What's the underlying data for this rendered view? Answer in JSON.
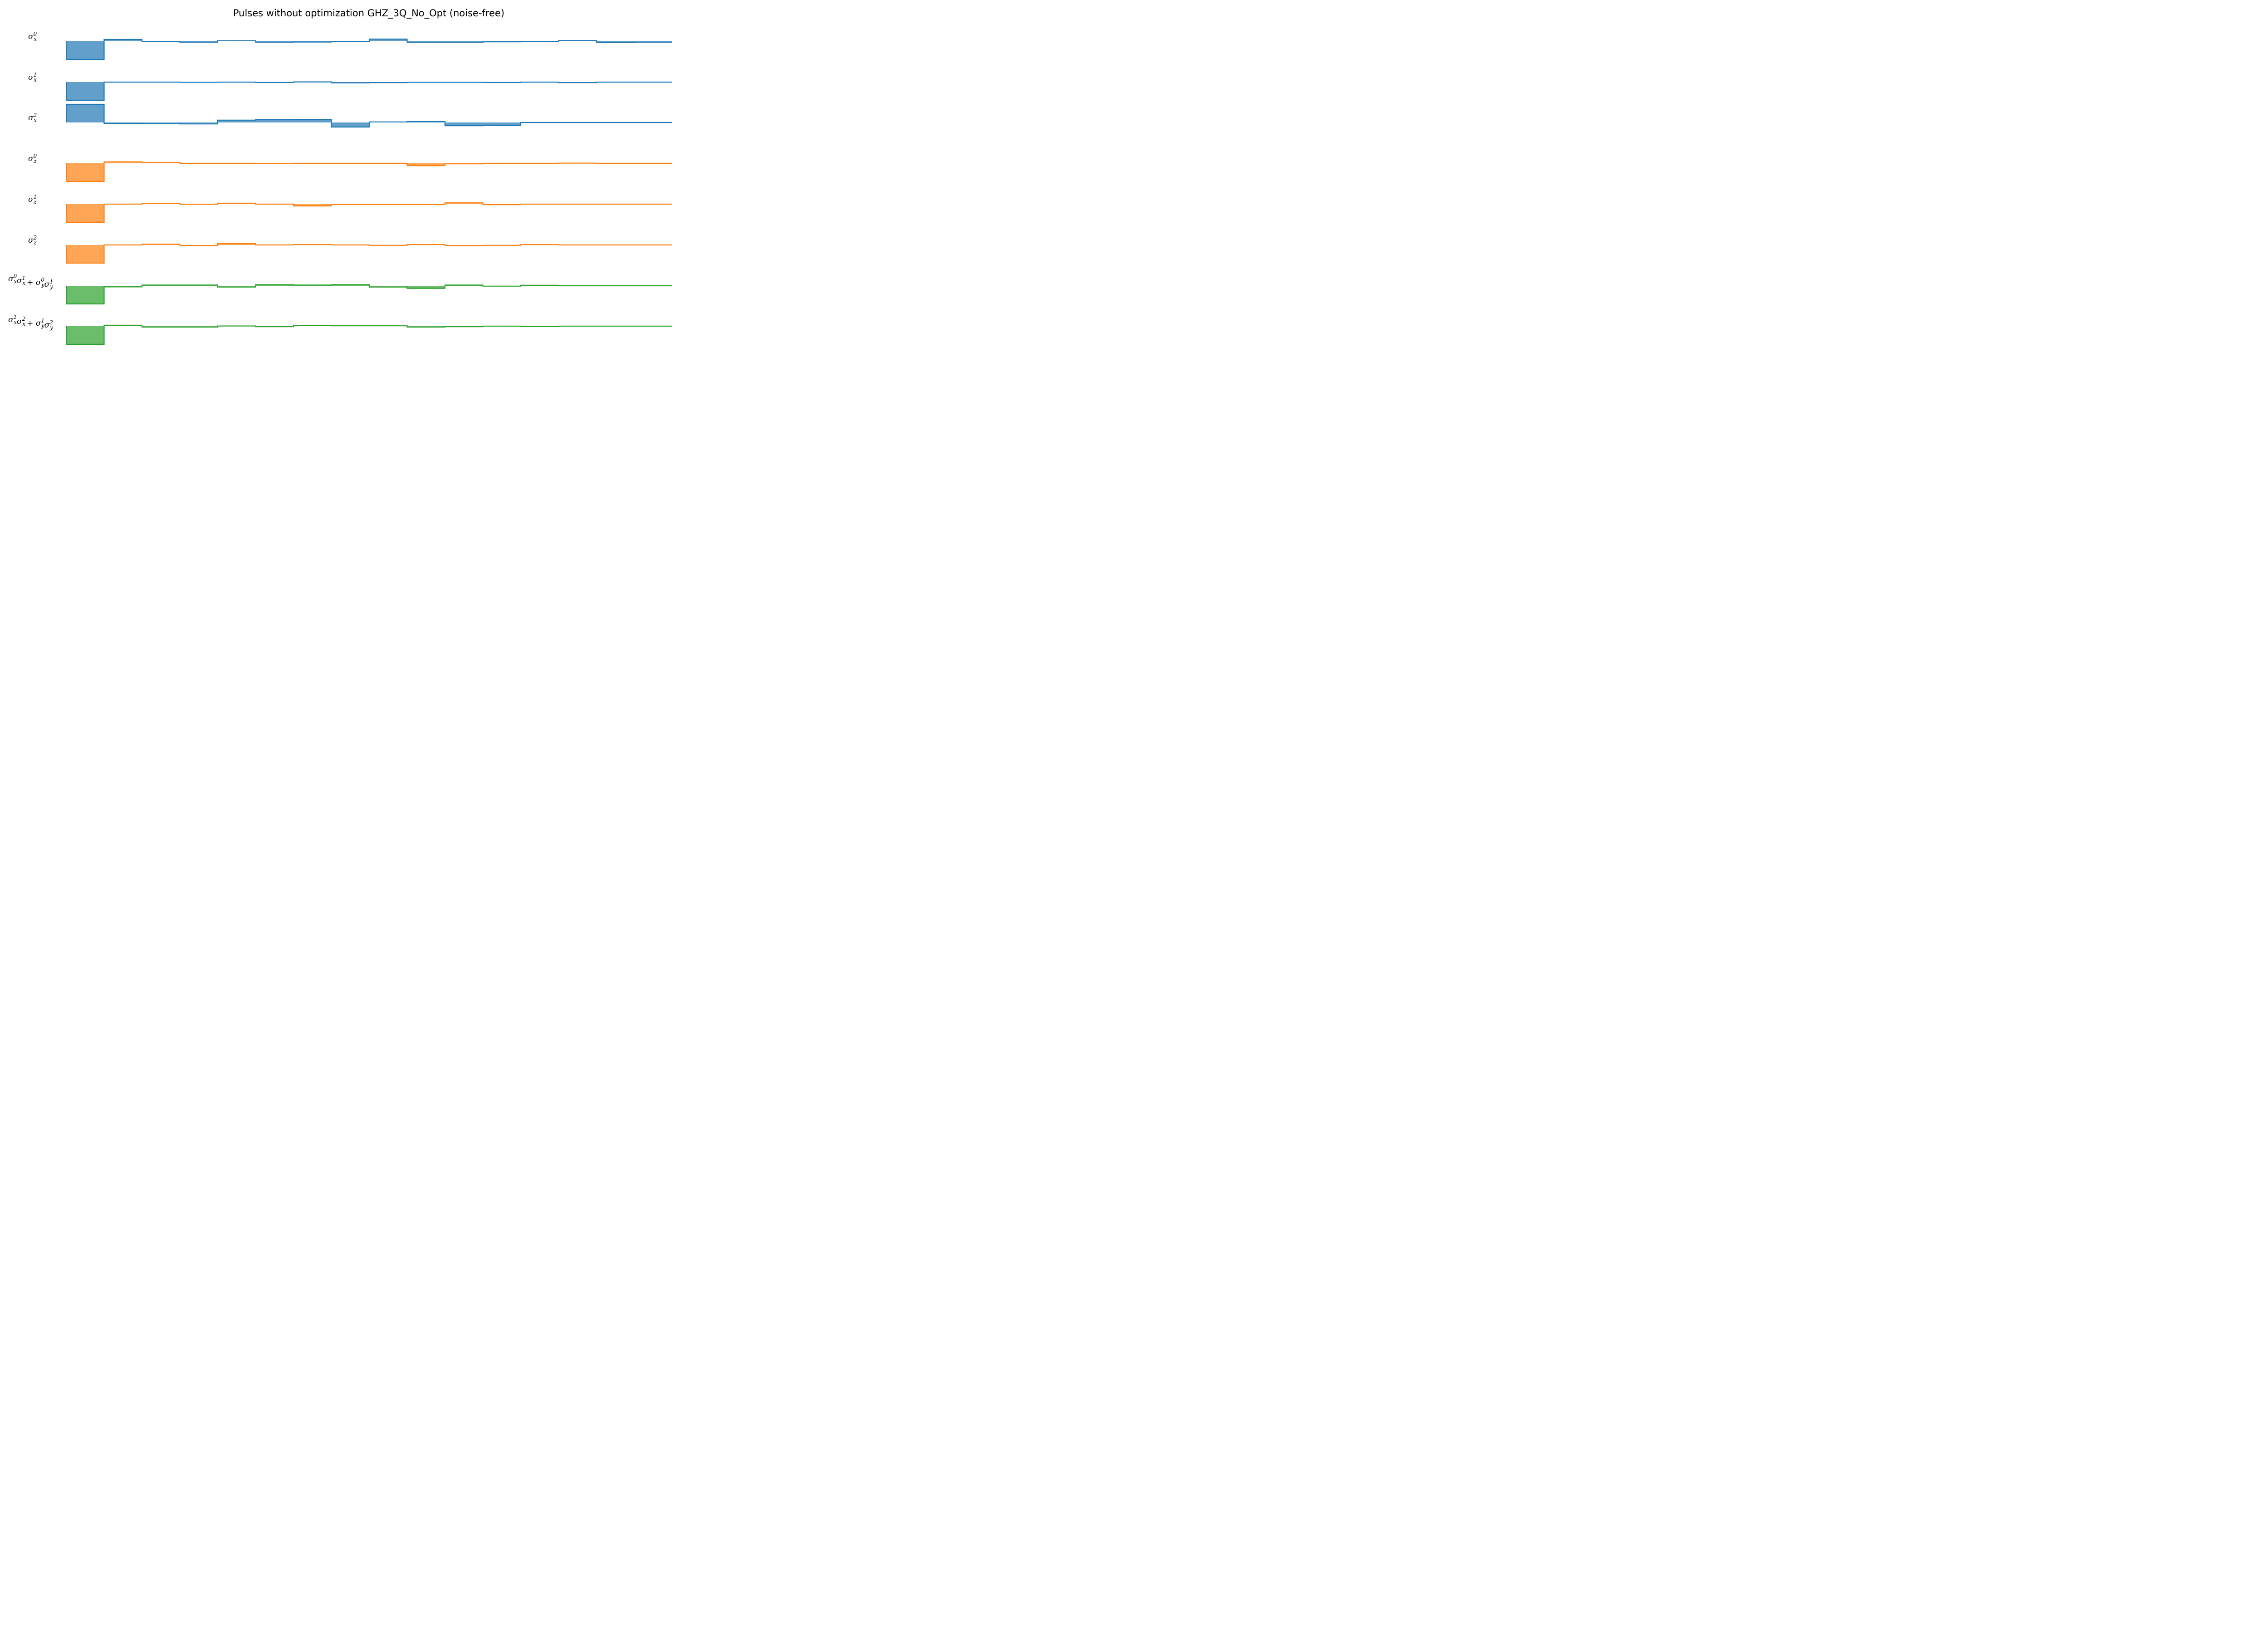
{
  "chart_data": {
    "type": "area",
    "title": "Pulses without optimization GHZ_3Q_No_Opt (noise-free)",
    "xlabel": "",
    "ylabel": "",
    "grid": false,
    "axes_visible": false,
    "x_segments": 16,
    "segment_edges": [
      0,
      4,
      5,
      6,
      7,
      8,
      9,
      10,
      11,
      12,
      13,
      14,
      15,
      16
    ],
    "series": [
      {
        "name": "σx0",
        "label_base": "σ",
        "label_sub": "x",
        "label_sup": "0",
        "color": "#1f77b4",
        "fill": "#62a0cb",
        "values": [
          -1.0,
          0.1,
          -0.02,
          -0.05,
          0.03,
          -0.05,
          -0.04,
          -0.02,
          0.12,
          -0.06,
          -0.06,
          -0.03,
          -0.01,
          0.04,
          -0.07,
          -0.05
        ]
      },
      {
        "name": "σx1",
        "label_base": "σ",
        "label_sub": "x",
        "label_sup": "1",
        "color": "#1f77b4",
        "fill": "#62a0cb",
        "values": [
          -1.0,
          0.0,
          0.0,
          -0.01,
          0.0,
          -0.02,
          0.01,
          -0.04,
          -0.03,
          -0.01,
          -0.01,
          -0.02,
          0.0,
          -0.03,
          0.0,
          0.0
        ]
      },
      {
        "name": "σx2",
        "label_base": "σ",
        "label_sub": "x",
        "label_sup": "2",
        "color": "#1f77b4",
        "fill": "#62a0cb",
        "values": [
          1.0,
          -0.05,
          -0.07,
          -0.08,
          0.13,
          0.16,
          0.17,
          -0.25,
          0.03,
          0.05,
          -0.18,
          -0.17,
          0.0,
          0.0,
          0.0,
          0.0
        ]
      },
      {
        "name": "σz0",
        "label_base": "σ",
        "label_sub": "z",
        "label_sup": "0",
        "color": "#ff7f0e",
        "fill": "#ffa556",
        "values": [
          -1.0,
          0.08,
          0.04,
          0.0,
          0.0,
          -0.02,
          0.0,
          0.0,
          0.0,
          -0.13,
          -0.03,
          0.0,
          0.0,
          0.01,
          0.0,
          0.0
        ]
      },
      {
        "name": "σz1",
        "label_base": "σ",
        "label_sub": "z",
        "label_sup": "1",
        "color": "#ff7f0e",
        "fill": "#ffa556",
        "values": [
          -1.0,
          0.0,
          0.04,
          -0.01,
          0.05,
          0.0,
          -0.1,
          -0.02,
          -0.02,
          -0.02,
          0.07,
          -0.03,
          0.0,
          0.0,
          0.0,
          0.0
        ]
      },
      {
        "name": "σz2",
        "label_base": "σ",
        "label_sub": "z",
        "label_sup": "2",
        "color": "#ff7f0e",
        "fill": "#ffa556",
        "values": [
          -1.0,
          0.0,
          0.04,
          -0.03,
          0.08,
          0.0,
          0.02,
          0.0,
          -0.02,
          0.02,
          -0.04,
          -0.02,
          0.02,
          0.0,
          0.0,
          0.0
        ]
      },
      {
        "name": "σx0σx1 + σy0σy1",
        "label_terms": [
          [
            "x",
            "0"
          ],
          [
            "x",
            "1"
          ],
          [
            "y",
            "0"
          ],
          [
            "y",
            "1"
          ]
        ],
        "color": "#2ca02c",
        "fill": "#6abd6a",
        "values": [
          -1.0,
          -0.06,
          0.04,
          0.04,
          -0.07,
          0.06,
          0.04,
          0.06,
          -0.07,
          -0.14,
          0.04,
          -0.02,
          0.03,
          0.0,
          0.0,
          0.0
        ]
      },
      {
        "name": "σx1σx2 + σy1σy2",
        "label_terms": [
          [
            "x",
            "1"
          ],
          [
            "x",
            "2"
          ],
          [
            "y",
            "1"
          ],
          [
            "y",
            "2"
          ]
        ],
        "color": "#2ca02c",
        "fill": "#6abd6a",
        "values": [
          -1.0,
          0.05,
          -0.05,
          -0.05,
          0.01,
          -0.03,
          0.04,
          0.02,
          0.02,
          -0.05,
          -0.03,
          0.0,
          -0.02,
          0.0,
          0.0,
          0.0
        ]
      }
    ]
  }
}
